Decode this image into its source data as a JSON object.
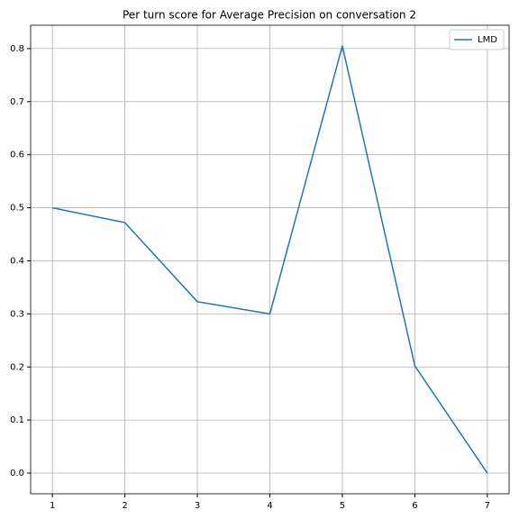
{
  "chart_data": {
    "type": "line",
    "title": "Per turn score for Average Precision on conversation 2",
    "x": [
      1,
      2,
      3,
      4,
      5,
      6,
      7
    ],
    "series": [
      {
        "name": "LMD",
        "color": "#1f77b4",
        "values": [
          0.5,
          0.472,
          0.323,
          0.3,
          0.805,
          0.202,
          0.0
        ]
      }
    ],
    "xlim": [
      0.7,
      7.3
    ],
    "ylim": [
      -0.039,
      0.844
    ],
    "xticks": [
      1,
      2,
      3,
      4,
      5,
      6,
      7
    ],
    "yticks": [
      {
        "value": 0,
        "label": "0.0"
      },
      {
        "value": 0.1,
        "label": "0.1"
      },
      {
        "value": 0.2,
        "label": "0.2"
      },
      {
        "value": 0.3,
        "label": "0.3"
      },
      {
        "value": 0.4,
        "label": "0.4"
      },
      {
        "value": 0.5,
        "label": "0.5"
      },
      {
        "value": 0.6,
        "label": "0.6"
      },
      {
        "value": 0.7,
        "label": "0.7"
      },
      {
        "value": 0.8,
        "label": "0.8"
      }
    ],
    "grid": true,
    "legend": "upper right"
  }
}
